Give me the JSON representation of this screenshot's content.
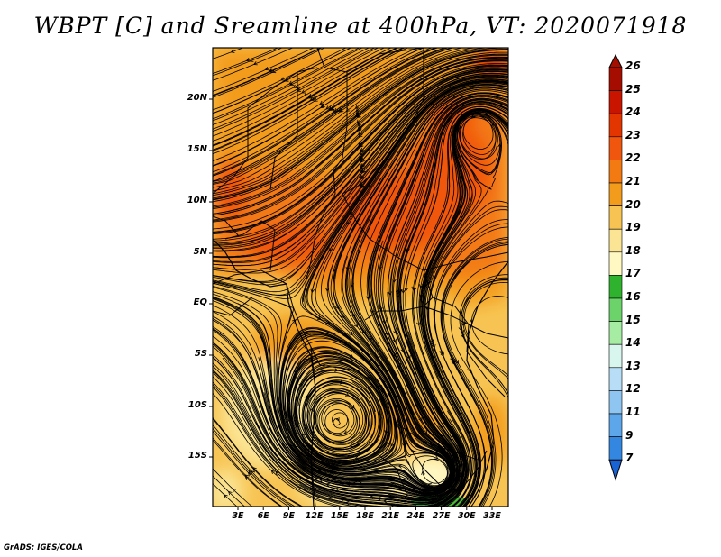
{
  "title": "WBPT [C] and Sreamline at 400hPa, VT: 2020071918",
  "credit": "GrADS: IGES/COLA",
  "map": {
    "lon_range": [
      0,
      35
    ],
    "lat_range": [
      -20,
      25
    ],
    "lat_ticks": [
      "20N",
      "15N",
      "10N",
      "5N",
      "EQ",
      "5S",
      "10S",
      "15S"
    ],
    "lon_ticks": [
      "3E",
      "6E",
      "9E",
      "12E",
      "15E",
      "18E",
      "21E",
      "24E",
      "27E",
      "30E",
      "33E"
    ]
  },
  "colorbar": {
    "labels": [
      "26",
      "25",
      "24",
      "23",
      "22",
      "21",
      "20",
      "19",
      "18",
      "17",
      "16",
      "15",
      "14",
      "13",
      "12",
      "11",
      "9",
      "7"
    ],
    "colors": [
      "#a50d00",
      "#c91400",
      "#e23500",
      "#f1560f",
      "#f37a12",
      "#f39c1c",
      "#f7c453",
      "#fbe493",
      "#fff8c3",
      "#2fb32f",
      "#6cd36b",
      "#a7eca3",
      "#d8f6ee",
      "#b8def7",
      "#8fc5f1",
      "#5ca6e9",
      "#3487e0",
      "#1a63d4"
    ]
  },
  "chart_data": {
    "type": "heatmap",
    "title": "WBPT [C] and Sreamline at 400hPa, VT: 2020071918",
    "variable": "WBPT [C]",
    "level": "400hPa",
    "valid_time": "2020071918",
    "features": [
      {
        "name": "warm band (22-23C)",
        "lon": [
          0,
          35
        ],
        "lat": [
          3,
          13
        ]
      },
      {
        "name": "cyclonic vortex",
        "lon": 14,
        "lat": -11
      },
      {
        "name": "vortex",
        "lon": 31,
        "lat": 16
      },
      {
        "name": "cool area (17-18C)",
        "lon": [
          23,
          29
        ],
        "lat": [
          -20,
          -19
        ]
      }
    ]
  }
}
